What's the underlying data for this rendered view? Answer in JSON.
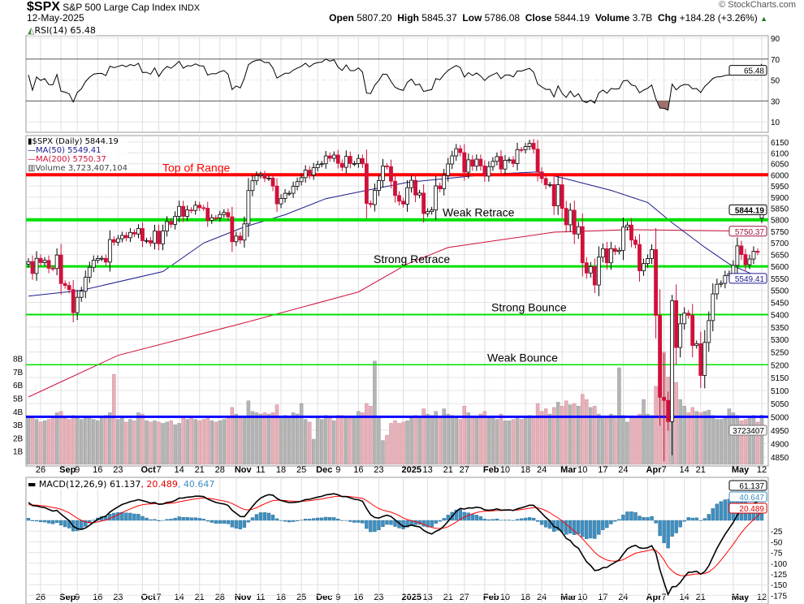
{
  "header": {
    "symbol": "$SPX",
    "name": "S&P 500 Large Cap Index",
    "exchange": "INDX",
    "date": "12-May-2025",
    "open_label": "Open",
    "open": "5807.20",
    "high_label": "High",
    "high": "5845.37",
    "low_label": "Low",
    "low": "5786.08",
    "close_label": "Close",
    "close": "5844.19",
    "volume_label": "Volume",
    "volume": "3.7B",
    "chg_label": "Chg",
    "chg": "+184.28 (+3.26%)",
    "watermark": "© StockCharts.com"
  },
  "legends": {
    "rsi": "RSI(14) 65.48",
    "price": "$SPX (Daily) 5844.19",
    "ma50": "MA(50) 5549.41",
    "ma200": "MA(200) 5750.37",
    "volume": "Volume 3,723,407,104",
    "macd": "MACD(12,26,9) 61.137",
    "macd_signal": ", 20.489",
    "macd_hist": ", 40.647"
  },
  "chart_data": {
    "type": "candlestick",
    "scale": "log",
    "grid": true,
    "colors": {
      "up": "#000000",
      "down": "#d0103a",
      "ma50": "#1c1c8c",
      "ma200": "#d0103a",
      "volume_up": "#b4b4b4",
      "volume_down": "#e8b0b8",
      "macd": "#000000",
      "signal": "#ff0000",
      "histogram": "#3f8fc0",
      "rsi": "#000000"
    },
    "last_bar": {
      "open": 5807.2,
      "high": 5845.37,
      "low": 5786.08,
      "close": 5844.19
    },
    "price_ticks": [
      6150,
      6100,
      6050,
      6000,
      5950,
      5900,
      5850,
      5800,
      5750,
      5700,
      5650,
      5600,
      5550,
      5500,
      5450,
      5400,
      5350,
      5300,
      5250,
      5200,
      5150,
      5100,
      5050,
      5000,
      4950,
      4900,
      4850
    ],
    "volume_ticks": [
      "1B",
      "2B",
      "3B",
      "4B",
      "5B",
      "6B",
      "7B",
      "8B"
    ],
    "rsi_ticks": [
      90,
      70,
      50,
      30,
      10
    ],
    "macd_ticks": [
      -25,
      -50,
      -75,
      -100,
      -125,
      -150,
      -175
    ],
    "value_tags": {
      "close": "5844.19",
      "ma200": "5750.37",
      "ma50": "5549.41",
      "volume": "3723407",
      "rsi": "65.48",
      "macd": "61.137",
      "hist": "40.647",
      "signal": "20.489"
    },
    "annotations": [
      {
        "label": "Top of Range",
        "price": 6000,
        "color": "#ff0000"
      },
      {
        "label": "Weak Retrace",
        "price": 5800,
        "color": "#00e000"
      },
      {
        "label": "Strong Retrace",
        "price": 5600,
        "color": "#00e000"
      },
      {
        "label": "Strong Bounce",
        "price": 5400,
        "color": "#00e000"
      },
      {
        "label": "Weak Bounce",
        "price": 5200,
        "color": "#00e000"
      },
      {
        "label": "",
        "price": 5000,
        "color": "#0000ff"
      }
    ],
    "x_labels": [
      {
        "label": "26",
        "date": "2024-08-26"
      },
      {
        "label": "Sep",
        "date": "2024-09-03",
        "bold": true
      },
      {
        "label": "9",
        "date": "2024-09-09"
      },
      {
        "label": "16",
        "date": "2024-09-16"
      },
      {
        "label": "23",
        "date": "2024-09-23"
      },
      {
        "label": "Oct",
        "date": "2024-10-01",
        "bold": true
      },
      {
        "label": "7",
        "date": "2024-10-07"
      },
      {
        "label": "14",
        "date": "2024-10-14"
      },
      {
        "label": "21",
        "date": "2024-10-21"
      },
      {
        "label": "28",
        "date": "2024-10-28"
      },
      {
        "label": "Nov",
        "date": "2024-11-01",
        "bold": true
      },
      {
        "label": "11",
        "date": "2024-11-11"
      },
      {
        "label": "18",
        "date": "2024-11-18"
      },
      {
        "label": "25",
        "date": "2024-11-25"
      },
      {
        "label": "Dec",
        "date": "2024-12-02",
        "bold": true
      },
      {
        "label": "9",
        "date": "2024-12-09"
      },
      {
        "label": "16",
        "date": "2024-12-16"
      },
      {
        "label": "23",
        "date": "2024-12-23"
      },
      {
        "label": "2025",
        "date": "2025-01-02",
        "bold": true
      },
      {
        "label": "13",
        "date": "2025-01-13"
      },
      {
        "label": "21",
        "date": "2025-01-21"
      },
      {
        "label": "27",
        "date": "2025-01-27"
      },
      {
        "label": "Feb",
        "date": "2025-02-03",
        "bold": true
      },
      {
        "label": "10",
        "date": "2025-02-10"
      },
      {
        "label": "18",
        "date": "2025-02-18"
      },
      {
        "label": "24",
        "date": "2025-02-24"
      },
      {
        "label": "Mar",
        "date": "2025-03-03",
        "bold": true
      },
      {
        "label": "10",
        "date": "2025-03-10"
      },
      {
        "label": "17",
        "date": "2025-03-17"
      },
      {
        "label": "24",
        "date": "2025-03-24"
      },
      {
        "label": "Apr",
        "date": "2025-04-01",
        "bold": true
      },
      {
        "label": "7",
        "date": "2025-04-07"
      },
      {
        "label": "14",
        "date": "2025-04-14"
      },
      {
        "label": "21",
        "date": "2025-04-21"
      },
      {
        "label": "May",
        "date": "2025-05-01",
        "bold": true
      },
      {
        "label": "12",
        "date": "2025-05-12"
      }
    ],
    "ma50": [
      [
        "2024-08-21",
        5476
      ],
      [
        "2024-09-10",
        5500
      ],
      [
        "2024-10-08",
        5578
      ],
      [
        "2024-10-22",
        5699
      ],
      [
        "2024-11-05",
        5769
      ],
      [
        "2024-11-19",
        5822
      ],
      [
        "2024-12-04",
        5893
      ],
      [
        "2024-12-18",
        5930
      ],
      [
        "2025-01-03",
        5966
      ],
      [
        "2025-02-04",
        6002
      ],
      [
        "2025-02-21",
        6013
      ],
      [
        "2025-03-05",
        5977
      ],
      [
        "2025-03-19",
        5930
      ],
      [
        "2025-04-01",
        5876
      ],
      [
        "2025-04-09",
        5787
      ],
      [
        "2025-04-22",
        5681
      ],
      [
        "2025-04-30",
        5610
      ],
      [
        "2025-05-12",
        5549.41
      ]
    ],
    "ma200": [
      [
        "2024-08-21",
        5075
      ],
      [
        "2024-09-23",
        5237
      ],
      [
        "2024-11-05",
        5367
      ],
      [
        "2024-12-16",
        5493
      ],
      [
        "2025-01-03",
        5610
      ],
      [
        "2025-01-21",
        5680
      ],
      [
        "2025-02-27",
        5746
      ],
      [
        "2025-03-25",
        5757
      ],
      [
        "2025-05-12",
        5750.37
      ]
    ],
    "prices": [
      [
        "2024-08-21",
        5620,
        3.6
      ],
      [
        "2024-08-22",
        5570,
        3.5
      ],
      [
        "2024-08-23",
        5634,
        3.4
      ],
      [
        "2024-08-26",
        5616,
        3.2
      ],
      [
        "2024-08-27",
        5625,
        3.3
      ],
      [
        "2024-08-28",
        5592,
        3.4
      ],
      [
        "2024-08-29",
        5591,
        3.6
      ],
      [
        "2024-08-30",
        5648,
        3.9
      ],
      [
        "2024-09-03",
        5528,
        4.0
      ],
      [
        "2024-09-04",
        5520,
        3.5
      ],
      [
        "2024-09-05",
        5503,
        3.4
      ],
      [
        "2024-09-06",
        5408,
        3.7
      ],
      [
        "2024-09-09",
        5471,
        3.5
      ],
      [
        "2024-09-10",
        5496,
        3.4
      ],
      [
        "2024-09-11",
        5554,
        3.6
      ],
      [
        "2024-09-12",
        5596,
        3.5
      ],
      [
        "2024-09-13",
        5626,
        3.4
      ],
      [
        "2024-09-16",
        5633,
        3.3
      ],
      [
        "2024-09-17",
        5634,
        3.5
      ],
      [
        "2024-09-18",
        5618,
        3.7
      ],
      [
        "2024-09-19",
        5714,
        3.9
      ],
      [
        "2024-09-20",
        5703,
        6.8
      ],
      [
        "2024-09-23",
        5718,
        3.4
      ],
      [
        "2024-09-24",
        5732,
        3.5
      ],
      [
        "2024-09-25",
        5722,
        3.2
      ],
      [
        "2024-09-26",
        5745,
        3.4
      ],
      [
        "2024-09-27",
        5738,
        3.3
      ],
      [
        "2024-09-30",
        5762,
        3.9
      ],
      [
        "2024-10-01",
        5709,
        3.8
      ],
      [
        "2024-10-02",
        5710,
        3.3
      ],
      [
        "2024-10-03",
        5699,
        3.2
      ],
      [
        "2024-10-04",
        5751,
        3.3
      ],
      [
        "2024-10-07",
        5696,
        3.2
      ],
      [
        "2024-10-08",
        5751,
        3.1
      ],
      [
        "2024-10-09",
        5792,
        3.2
      ],
      [
        "2024-10-10",
        5780,
        3.3
      ],
      [
        "2024-10-11",
        5815,
        3.0
      ],
      [
        "2024-10-14",
        5859,
        3.1
      ],
      [
        "2024-10-15",
        5815,
        3.6
      ],
      [
        "2024-10-16",
        5843,
        3.4
      ],
      [
        "2024-10-17",
        5841,
        3.5
      ],
      [
        "2024-10-18",
        5864,
        3.4
      ],
      [
        "2024-10-21",
        5853,
        3.3
      ],
      [
        "2024-10-22",
        5851,
        3.4
      ],
      [
        "2024-10-23",
        5797,
        3.6
      ],
      [
        "2024-10-24",
        5809,
        3.3
      ],
      [
        "2024-10-25",
        5808,
        3.2
      ],
      [
        "2024-10-28",
        5823,
        3.3
      ],
      [
        "2024-10-29",
        5832,
        3.4
      ],
      [
        "2024-10-30",
        5813,
        3.6
      ],
      [
        "2024-10-31",
        5705,
        4.3
      ],
      [
        "2024-11-01",
        5729,
        3.8
      ],
      [
        "2024-11-04",
        5712,
        3.5
      ],
      [
        "2024-11-05",
        5782,
        3.6
      ],
      [
        "2024-11-06",
        5929,
        4.8
      ],
      [
        "2024-11-07",
        5973,
        4.0
      ],
      [
        "2024-11-08",
        5996,
        3.9
      ],
      [
        "2024-11-11",
        6001,
        3.8
      ],
      [
        "2024-11-12",
        5984,
        3.9
      ],
      [
        "2024-11-13",
        5985,
        3.8
      ],
      [
        "2024-11-14",
        5949,
        3.9
      ],
      [
        "2024-11-15",
        5870,
        4.5
      ],
      [
        "2024-11-18",
        5894,
        3.6
      ],
      [
        "2024-11-19",
        5917,
        3.7
      ],
      [
        "2024-11-20",
        5917,
        3.6
      ],
      [
        "2024-11-21",
        5948,
        3.9
      ],
      [
        "2024-11-22",
        5969,
        3.8
      ],
      [
        "2024-11-25",
        5987,
        4.6
      ],
      [
        "2024-11-26",
        6021,
        3.4
      ],
      [
        "2024-11-27",
        5999,
        3.2
      ],
      [
        "2024-11-29",
        6032,
        1.9
      ],
      [
        "2024-12-02",
        6047,
        3.6
      ],
      [
        "2024-12-03",
        6050,
        3.4
      ],
      [
        "2024-12-04",
        6086,
        3.7
      ],
      [
        "2024-12-05",
        6075,
        3.5
      ],
      [
        "2024-12-06",
        6090,
        3.3
      ],
      [
        "2024-12-09",
        6052,
        3.7
      ],
      [
        "2024-12-10",
        6034,
        3.7
      ],
      [
        "2024-12-11",
        6084,
        3.6
      ],
      [
        "2024-12-12",
        6051,
        3.5
      ],
      [
        "2024-12-13",
        6051,
        3.6
      ],
      [
        "2024-12-16",
        6074,
        4.0
      ],
      [
        "2024-12-17",
        6050,
        3.9
      ],
      [
        "2024-12-18",
        5872,
        4.6
      ],
      [
        "2024-12-19",
        5867,
        4.4
      ],
      [
        "2024-12-20",
        5930,
        7.8
      ],
      [
        "2024-12-23",
        5974,
        3.5
      ],
      [
        "2024-12-24",
        6040,
        1.8
      ],
      [
        "2024-12-26",
        6037,
        2.2
      ],
      [
        "2024-12-27",
        5971,
        3.1
      ],
      [
        "2024-12-30",
        5907,
        3.3
      ],
      [
        "2024-12-31",
        5882,
        3.1
      ],
      [
        "2025-01-02",
        5869,
        3.2
      ],
      [
        "2025-01-03",
        5942,
        3.3
      ],
      [
        "2025-01-06",
        5975,
        3.5
      ],
      [
        "2025-01-07",
        5909,
        3.7
      ],
      [
        "2025-01-08",
        5918,
        3.6
      ],
      [
        "2025-01-10",
        5827,
        4.2
      ],
      [
        "2025-01-13",
        5836,
        3.8
      ],
      [
        "2025-01-14",
        5843,
        3.7
      ],
      [
        "2025-01-15",
        5950,
        4.0
      ],
      [
        "2025-01-16",
        5937,
        3.6
      ],
      [
        "2025-01-17",
        5997,
        4.2
      ],
      [
        "2025-01-21",
        6049,
        3.8
      ],
      [
        "2025-01-22",
        6086,
        3.7
      ],
      [
        "2025-01-23",
        6119,
        3.6
      ],
      [
        "2025-01-24",
        6101,
        3.4
      ],
      [
        "2025-01-27",
        6012,
        4.4
      ],
      [
        "2025-01-28",
        6068,
        3.9
      ],
      [
        "2025-01-29",
        6039,
        3.5
      ],
      [
        "2025-01-30",
        6071,
        3.6
      ],
      [
        "2025-01-31",
        6040,
        3.8
      ],
      [
        "2025-02-03",
        5994,
        4.0
      ],
      [
        "2025-02-04",
        6037,
        3.5
      ],
      [
        "2025-02-05",
        6061,
        3.5
      ],
      [
        "2025-02-06",
        6083,
        3.4
      ],
      [
        "2025-02-07",
        6026,
        3.8
      ],
      [
        "2025-02-10",
        6066,
        3.3
      ],
      [
        "2025-02-11",
        6068,
        3.3
      ],
      [
        "2025-02-12",
        6051,
        3.4
      ],
      [
        "2025-02-13",
        6115,
        3.5
      ],
      [
        "2025-02-14",
        6114,
        3.4
      ],
      [
        "2025-02-18",
        6129,
        3.6
      ],
      [
        "2025-02-19",
        6144,
        3.7
      ],
      [
        "2025-02-20",
        6117,
        3.6
      ],
      [
        "2025-02-21",
        6013,
        4.6
      ],
      [
        "2025-02-24",
        5983,
        4.0
      ],
      [
        "2025-02-25",
        5955,
        4.2
      ],
      [
        "2025-02-26",
        5956,
        3.8
      ],
      [
        "2025-02-27",
        5861,
        4.3
      ],
      [
        "2025-02-28",
        5955,
        4.7
      ],
      [
        "2025-03-03",
        5850,
        4.4
      ],
      [
        "2025-03-04",
        5778,
        4.8
      ],
      [
        "2025-03-05",
        5842,
        4.5
      ],
      [
        "2025-03-06",
        5738,
        4.6
      ],
      [
        "2025-03-07",
        5770,
        4.4
      ],
      [
        "2025-03-10",
        5615,
        5.3
      ],
      [
        "2025-03-11",
        5572,
        4.9
      ],
      [
        "2025-03-12",
        5599,
        4.3
      ],
      [
        "2025-03-13",
        5522,
        4.4
      ],
      [
        "2025-03-14",
        5639,
        3.8
      ],
      [
        "2025-03-17",
        5675,
        3.6
      ],
      [
        "2025-03-18",
        5615,
        3.5
      ],
      [
        "2025-03-19",
        5675,
        3.8
      ],
      [
        "2025-03-20",
        5663,
        3.7
      ],
      [
        "2025-03-21",
        5668,
        7.3
      ],
      [
        "2025-03-24",
        5768,
        3.7
      ],
      [
        "2025-03-25",
        5777,
        3.2
      ],
      [
        "2025-03-26",
        5712,
        3.6
      ],
      [
        "2025-03-27",
        5693,
        3.5
      ],
      [
        "2025-03-28",
        5581,
        3.8
      ],
      [
        "2025-03-31",
        5612,
        4.9
      ],
      [
        "2025-04-01",
        5633,
        3.8
      ],
      [
        "2025-04-02",
        5671,
        3.7
      ],
      [
        "2025-04-03",
        5397,
        5.9
      ],
      [
        "2025-04-04",
        5074,
        6.8
      ],
      [
        "2025-04-07",
        5062,
        8.5,
        5246,
        4835
      ],
      [
        "2025-04-08",
        4982,
        6.6
      ],
      [
        "2025-04-09",
        5457,
        8.8,
        5481,
        4857
      ],
      [
        "2025-04-10",
        5268,
        6.2
      ],
      [
        "2025-04-11",
        5363,
        4.9
      ],
      [
        "2025-04-14",
        5406,
        4.4
      ],
      [
        "2025-04-15",
        5397,
        3.9
      ],
      [
        "2025-04-16",
        5276,
        4.3
      ],
      [
        "2025-04-17",
        5283,
        4.0
      ],
      [
        "2025-04-21",
        5158,
        3.9
      ],
      [
        "2025-04-22",
        5288,
        4.0
      ],
      [
        "2025-04-23",
        5376,
        4.1
      ],
      [
        "2025-04-24",
        5485,
        3.7
      ],
      [
        "2025-04-25",
        5525,
        3.4
      ],
      [
        "2025-04-28",
        5529,
        3.4
      ],
      [
        "2025-04-29",
        5561,
        3.6
      ],
      [
        "2025-04-30",
        5569,
        4.2
      ],
      [
        "2025-05-01",
        5604,
        3.9
      ],
      [
        "2025-05-02",
        5687,
        3.7
      ],
      [
        "2025-05-05",
        5650,
        3.3
      ],
      [
        "2025-05-06",
        5607,
        3.4
      ],
      [
        "2025-05-07",
        5631,
        3.5
      ],
      [
        "2025-05-08",
        5664,
        3.7
      ],
      [
        "2025-05-09",
        5660,
        3.2
      ],
      [
        "2025-05-12",
        5844.19,
        3.72
      ]
    ]
  }
}
